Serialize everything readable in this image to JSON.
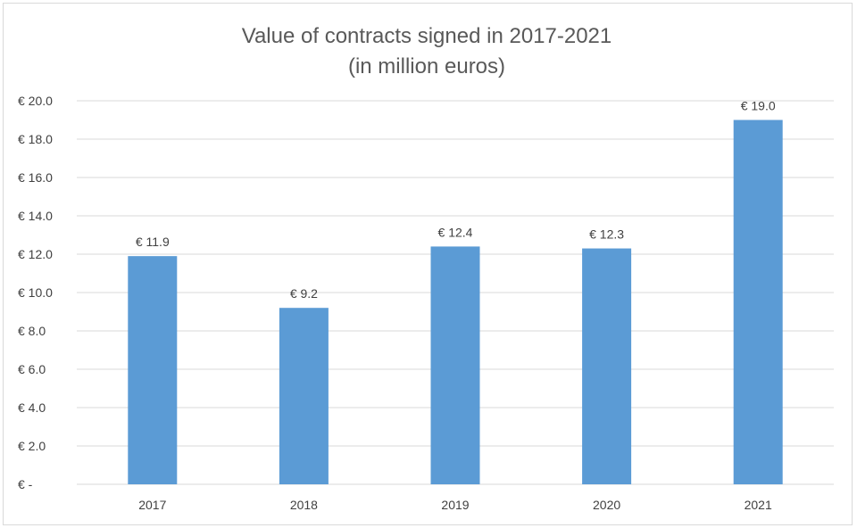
{
  "chart_data": {
    "type": "bar",
    "title": "Value of contracts signed in 2017-2021",
    "subtitle": "(in million euros)",
    "categories": [
      "2017",
      "2018",
      "2019",
      "2020",
      "2021"
    ],
    "values": [
      11.9,
      9.2,
      12.4,
      12.3,
      19.0
    ],
    "data_labels": [
      "€ 11.9",
      "€ 9.2",
      "€ 12.4",
      "€ 12.3",
      "€ 19.0"
    ],
    "y_ticks": [
      {
        "value": 0,
        "label": "€ -"
      },
      {
        "value": 2,
        "label": "€ 2.0"
      },
      {
        "value": 4,
        "label": "€ 4.0"
      },
      {
        "value": 6,
        "label": "€ 6.0"
      },
      {
        "value": 8,
        "label": "€ 8.0"
      },
      {
        "value": 10,
        "label": "€ 10.0"
      },
      {
        "value": 12,
        "label": "€ 12.0"
      },
      {
        "value": 14,
        "label": "€ 14.0"
      },
      {
        "value": 16,
        "label": "€ 16.0"
      },
      {
        "value": 18,
        "label": "€ 18.0"
      },
      {
        "value": 20,
        "label": "€ 20.0"
      }
    ],
    "ylim": [
      0,
      20
    ],
    "grid": true,
    "legend": "none",
    "bar_color": "#5b9bd5",
    "grid_color": "#d9d9d9"
  }
}
